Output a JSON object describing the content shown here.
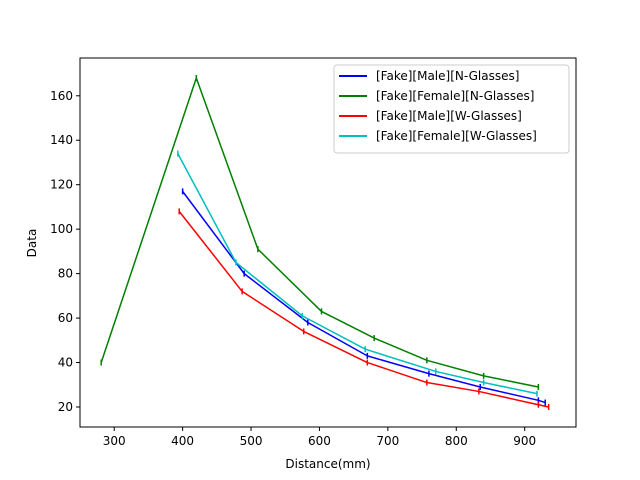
{
  "chart_data": {
    "type": "line",
    "title": "",
    "xlabel": "Distance(mm)",
    "ylabel": "Data",
    "xlim": [
      250,
      975
    ],
    "ylim": [
      11,
      177
    ],
    "xticks": [
      300,
      400,
      500,
      600,
      700,
      800,
      900
    ],
    "yticks": [
      20,
      40,
      60,
      80,
      100,
      120,
      140,
      160
    ],
    "grid": false,
    "legend_position": "top-right",
    "series": [
      {
        "name": "[Fake][Male][N-Glasses]",
        "color": "#0000ff",
        "x": [
          400,
          490,
          583,
          670,
          760,
          835,
          920,
          930
        ],
        "y": [
          117,
          80,
          58,
          43,
          35,
          29,
          23,
          22
        ]
      },
      {
        "name": "[Fake][Female][N-Glasses]",
        "color": "#008000",
        "x": [
          281,
          420,
          510,
          603,
          680,
          757,
          840,
          920
        ],
        "y": [
          40,
          168,
          91,
          63,
          51,
          41,
          34,
          29
        ]
      },
      {
        "name": "[Fake][Male][W-Glasses]",
        "color": "#ff0000",
        "x": [
          395,
          487,
          577,
          670,
          757,
          833,
          920,
          935
        ],
        "y": [
          108,
          72,
          54,
          40,
          31,
          27,
          21,
          20
        ]
      },
      {
        "name": "[Fake][Female][W-Glasses]",
        "color": "#00bfbf",
        "x": [
          393,
          478,
          575,
          667,
          770,
          840,
          918
        ],
        "y": [
          134,
          85,
          61,
          46,
          36,
          31,
          26
        ]
      }
    ]
  }
}
